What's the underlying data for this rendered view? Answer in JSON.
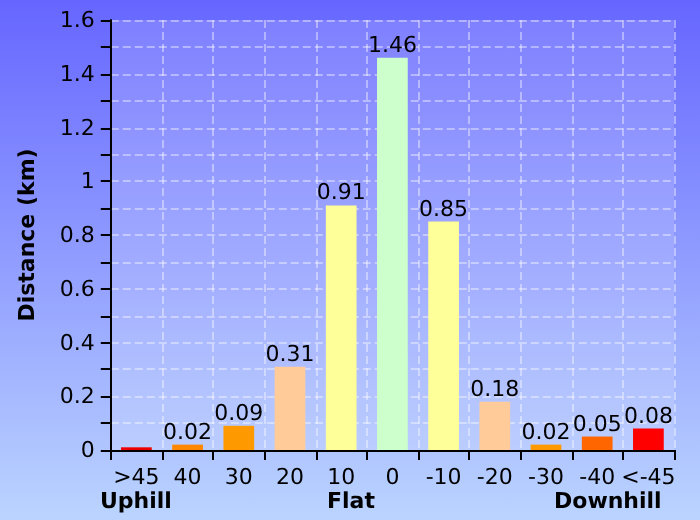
{
  "chart_data": {
    "type": "bar",
    "ylabel": "Distance (km)",
    "categories": [
      ">45",
      "40",
      "30",
      "20",
      "10",
      "0",
      "-10",
      "-20",
      "-30",
      "-40",
      "<-45"
    ],
    "values": [
      0.01,
      0.02,
      0.09,
      0.31,
      0.91,
      1.46,
      0.85,
      0.18,
      0.02,
      0.05,
      0.08
    ],
    "value_labels": [
      null,
      "0.02",
      "0.09",
      "0.31",
      "0.91",
      "1.46",
      "0.85",
      "0.18",
      "0.02",
      "0.05",
      "0.08"
    ],
    "colors": [
      "#ee0000",
      "#ff8800",
      "#ff9900",
      "#ffcc99",
      "#ffff99",
      "#ccffcc",
      "#ffff99",
      "#ffcc99",
      "#ff9900",
      "#ff6600",
      "#ff0000"
    ],
    "ylim": [
      0,
      1.6
    ],
    "yticks": [
      0,
      {
        "value": 0.1,
        "label": null
      },
      0.2,
      {
        "value": 0.3,
        "label": null
      },
      0.4,
      {
        "value": 0.5,
        "label": null
      },
      0.6,
      {
        "value": 0.7,
        "label": null
      },
      0.8,
      {
        "value": 0.9,
        "label": null
      },
      1,
      {
        "value": 1.1,
        "label": null
      },
      1.2,
      {
        "value": 1.3,
        "label": null
      },
      1.4,
      {
        "value": 1.5,
        "label": null
      },
      1.6
    ],
    "annotations": [
      "Uphill",
      "Flat",
      "Downhill"
    ],
    "grid": true
  }
}
